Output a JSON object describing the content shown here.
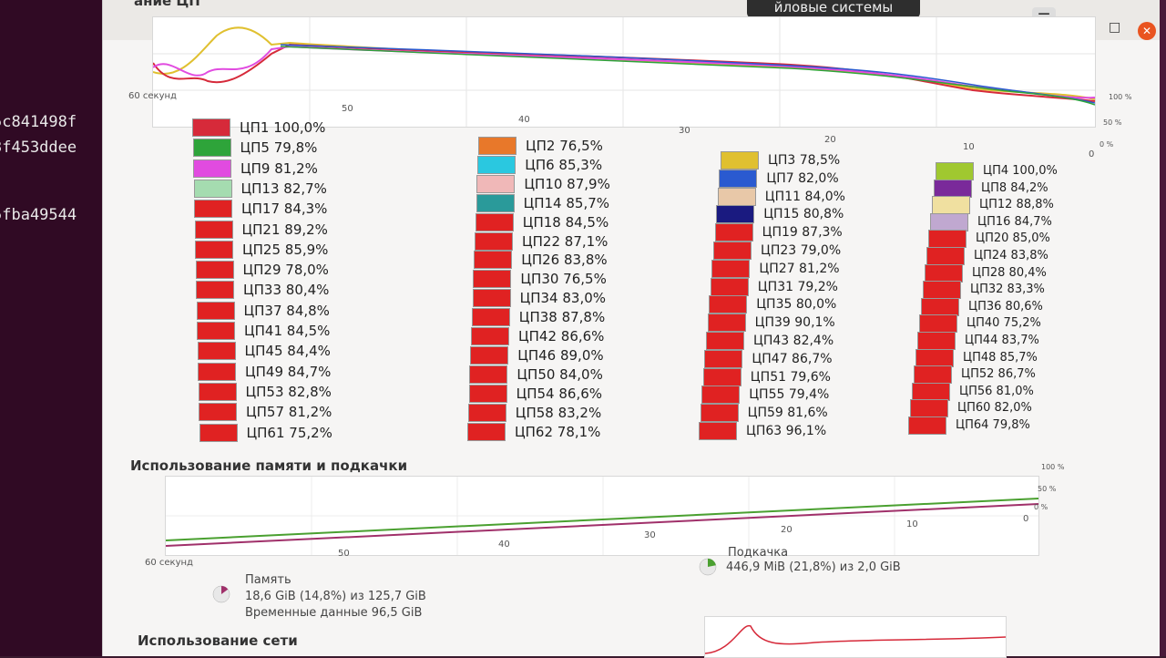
{
  "terminal": {
    "lines": [
      "5c841498f",
      "3f453ddee",
      "5fba49544"
    ]
  },
  "window": {
    "section_title": "ание ЦП",
    "tab_label": "йловые системы",
    "controls": {
      "menu": "☰",
      "minimize": "–",
      "maximize": "□",
      "close": "✕"
    }
  },
  "cpu_graph": {
    "x_labels": [
      "60 секунд",
      "50",
      "40",
      "30",
      "20",
      "10",
      "0"
    ],
    "y_labels": [
      "100 %",
      "50 %",
      "0 %"
    ]
  },
  "cpu": {
    "columns": [
      [
        {
          "label": "ЦП1 100,0%",
          "color": "#d62a3a"
        },
        {
          "label": "ЦП5 79,8%",
          "color": "#2ea43a"
        },
        {
          "label": "ЦП9 81,2%",
          "color": "#e14be0"
        },
        {
          "label": "ЦП13 82,7%",
          "color": "#a5dcb0"
        },
        {
          "label": "ЦП17 84,3%",
          "color": "#e02222"
        },
        {
          "label": "ЦП21 89,2%",
          "color": "#e02222"
        },
        {
          "label": "ЦП25 85,9%",
          "color": "#e02222"
        },
        {
          "label": "ЦП29 78,0%",
          "color": "#e02222"
        },
        {
          "label": "ЦП33 80,4%",
          "color": "#e02222"
        },
        {
          "label": "ЦП37 84,8%",
          "color": "#e02222"
        },
        {
          "label": "ЦП41 84,5%",
          "color": "#e02222"
        },
        {
          "label": "ЦП45 84,4%",
          "color": "#e02222"
        },
        {
          "label": "ЦП49 84,7%",
          "color": "#e02222"
        },
        {
          "label": "ЦП53 82,8%",
          "color": "#e02222"
        },
        {
          "label": "ЦП57 81,2%",
          "color": "#e02222"
        },
        {
          "label": "ЦП61 75,2%",
          "color": "#e02222"
        }
      ],
      [
        {
          "label": "ЦП2 76,5%",
          "color": "#e8782a"
        },
        {
          "label": "ЦП6 85,3%",
          "color": "#2ac8e0"
        },
        {
          "label": "ЦП10 87,9%",
          "color": "#f0b8b8"
        },
        {
          "label": "ЦП14 85,7%",
          "color": "#2a9a9a"
        },
        {
          "label": "ЦП18 84,5%",
          "color": "#e02222"
        },
        {
          "label": "ЦП22 87,1%",
          "color": "#e02222"
        },
        {
          "label": "ЦП26 83,8%",
          "color": "#e02222"
        },
        {
          "label": "ЦП30 76,5%",
          "color": "#e02222"
        },
        {
          "label": "ЦП34 83,0%",
          "color": "#e02222"
        },
        {
          "label": "ЦП38 87,8%",
          "color": "#e02222"
        },
        {
          "label": "ЦП42 86,6%",
          "color": "#e02222"
        },
        {
          "label": "ЦП46 89,0%",
          "color": "#e02222"
        },
        {
          "label": "ЦП50 84,0%",
          "color": "#e02222"
        },
        {
          "label": "ЦП54 86,6%",
          "color": "#e02222"
        },
        {
          "label": "ЦП58 83,2%",
          "color": "#e02222"
        },
        {
          "label": "ЦП62 78,1%",
          "color": "#e02222"
        }
      ],
      [
        {
          "label": "ЦП3 78,5%",
          "color": "#e0c030"
        },
        {
          "label": "ЦП7 82,0%",
          "color": "#2a5ad0"
        },
        {
          "label": "ЦП11 84,0%",
          "color": "#e8c8a8"
        },
        {
          "label": "ЦП15 80,8%",
          "color": "#1a1a80"
        },
        {
          "label": "ЦП19 87,3%",
          "color": "#e02222"
        },
        {
          "label": "ЦП23 79,0%",
          "color": "#e02222"
        },
        {
          "label": "ЦП27 81,2%",
          "color": "#e02222"
        },
        {
          "label": "ЦП31 79,2%",
          "color": "#e02222"
        },
        {
          "label": "ЦП35 80,0%",
          "color": "#e02222"
        },
        {
          "label": "ЦП39 90,1%",
          "color": "#e02222"
        },
        {
          "label": "ЦП43 82,4%",
          "color": "#e02222"
        },
        {
          "label": "ЦП47 86,7%",
          "color": "#e02222"
        },
        {
          "label": "ЦП51 79,6%",
          "color": "#e02222"
        },
        {
          "label": "ЦП55 79,4%",
          "color": "#e02222"
        },
        {
          "label": "ЦП59 81,6%",
          "color": "#e02222"
        },
        {
          "label": "ЦП63 96,1%",
          "color": "#e02222"
        }
      ],
      [
        {
          "label": "ЦП4 100,0%",
          "color": "#a0c830"
        },
        {
          "label": "ЦП8 84,2%",
          "color": "#7a2a9a"
        },
        {
          "label": "ЦП12 88,8%",
          "color": "#f0e0a0"
        },
        {
          "label": "ЦП16 84,7%",
          "color": "#c0a8d0"
        },
        {
          "label": "ЦП20 85,0%",
          "color": "#e02222"
        },
        {
          "label": "ЦП24 83,8%",
          "color": "#e02222"
        },
        {
          "label": "ЦП28 80,4%",
          "color": "#e02222"
        },
        {
          "label": "ЦП32 83,3%",
          "color": "#e02222"
        },
        {
          "label": "ЦП36 80,6%",
          "color": "#e02222"
        },
        {
          "label": "ЦП40 75,2%",
          "color": "#e02222"
        },
        {
          "label": "ЦП44 83,7%",
          "color": "#e02222"
        },
        {
          "label": "ЦП48 85,7%",
          "color": "#e02222"
        },
        {
          "label": "ЦП52 86,7%",
          "color": "#e02222"
        },
        {
          "label": "ЦП56 81,0%",
          "color": "#e02222"
        },
        {
          "label": "ЦП60 82,0%",
          "color": "#e02222"
        },
        {
          "label": "ЦП64 79,8%",
          "color": "#e02222"
        }
      ]
    ]
  },
  "memory": {
    "section_title": "Использование памяти и подкачки",
    "x_labels": [
      "60 секунд",
      "50",
      "40",
      "30",
      "20",
      "10",
      "0"
    ],
    "y_labels": [
      "100 %",
      "50 %",
      "0 %"
    ],
    "mem_title": "Память",
    "mem_line1": "18,6 GiB (14,8%) из 125,7 GiB",
    "mem_line2": "Временные данные 96,5 GiB",
    "mem_fraction": 0.148,
    "mem_color": "#a0306a",
    "swap_title": "Подкачка",
    "swap_line1": "446,9 MiB (21,8%) из 2,0 GiB",
    "swap_fraction": 0.218,
    "swap_color": "#4aa030"
  },
  "network": {
    "section_title": "Использование сети"
  }
}
